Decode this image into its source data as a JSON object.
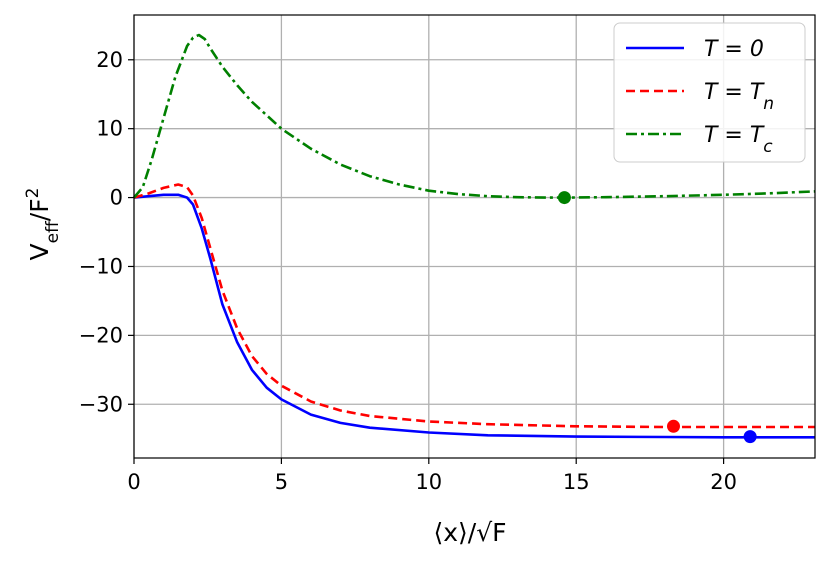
{
  "chart_data": {
    "type": "line",
    "xlabel": "⟨x⟩/√F",
    "ylabel": "V_eff/F^2",
    "xlim": [
      0,
      23.1
    ],
    "ylim": [
      -37.8,
      26.5
    ],
    "xticks": [
      "0",
      "5",
      "10",
      "15",
      "20"
    ],
    "yticks": [
      "20",
      "10",
      "0",
      "−10",
      "−20",
      "−30"
    ],
    "grid": true,
    "legend_position": "top-right",
    "series": [
      {
        "name": "T = 0",
        "color": "#0000ff",
        "style": "solid",
        "x": [
          0,
          0.5,
          1.0,
          1.5,
          1.8,
          2.0,
          2.3,
          2.6,
          3.0,
          3.5,
          4.0,
          4.5,
          5.0,
          6.0,
          7.0,
          8.0,
          10.0,
          12.0,
          15.0,
          18.0,
          20.0,
          23.1
        ],
        "y": [
          0,
          0.2,
          0.4,
          0.4,
          0.0,
          -1.0,
          -4.5,
          -9.0,
          -15.5,
          -21.0,
          -25.0,
          -27.6,
          -29.3,
          -31.5,
          -32.7,
          -33.4,
          -34.1,
          -34.5,
          -34.7,
          -34.75,
          -34.8,
          -34.8
        ],
        "marker": {
          "x": 20.9,
          "y": -34.7
        }
      },
      {
        "name": "T = T_n",
        "color": "#ff0000",
        "style": "dashed",
        "x": [
          0,
          0.5,
          1.0,
          1.5,
          1.8,
          2.0,
          2.3,
          2.6,
          3.0,
          3.5,
          4.0,
          4.5,
          5.0,
          6.0,
          7.0,
          8.0,
          10.0,
          12.0,
          15.0,
          18.0,
          20.0,
          23.1
        ],
        "y": [
          0,
          0.6,
          1.4,
          1.9,
          1.5,
          0.3,
          -3.0,
          -7.5,
          -13.5,
          -19.0,
          -23.0,
          -25.6,
          -27.3,
          -29.6,
          -30.9,
          -31.7,
          -32.5,
          -32.9,
          -33.2,
          -33.3,
          -33.3,
          -33.3
        ],
        "marker": {
          "x": 18.3,
          "y": -33.2
        }
      },
      {
        "name": "T = T_c",
        "color": "#008000",
        "style": "dashdot",
        "x": [
          0,
          0.3,
          0.6,
          1.0,
          1.4,
          1.8,
          2.0,
          2.2,
          2.4,
          2.6,
          3.0,
          3.5,
          4.0,
          5.0,
          6.0,
          7.0,
          8.0,
          9.0,
          10.0,
          11.0,
          12.0,
          13.0,
          14.0,
          14.6,
          16.0,
          18.0,
          20.0,
          21.5,
          23.1
        ],
        "y": [
          0,
          1.5,
          5.5,
          11.5,
          17.5,
          22.0,
          23.2,
          23.6,
          23.0,
          21.6,
          19.0,
          16.3,
          13.9,
          10.0,
          7.1,
          4.8,
          3.1,
          1.9,
          1.0,
          0.5,
          0.2,
          0.05,
          0.0,
          0.0,
          0.05,
          0.2,
          0.4,
          0.6,
          0.9
        ],
        "marker": {
          "x": 14.6,
          "y": 0.0
        }
      }
    ]
  }
}
